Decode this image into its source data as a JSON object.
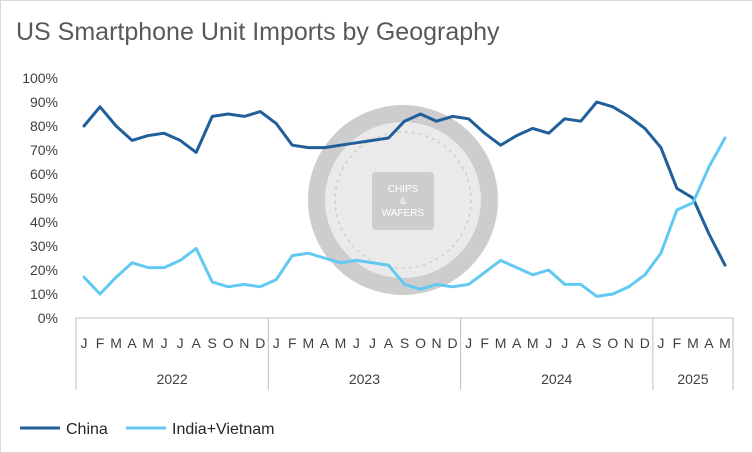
{
  "chart_data": {
    "type": "line",
    "title": "US Smartphone Unit Imports by Geography",
    "xlabel": "",
    "ylabel": "",
    "ylim": [
      0,
      100
    ],
    "y_ticks": [
      "0%",
      "10%",
      "20%",
      "30%",
      "40%",
      "50%",
      "60%",
      "70%",
      "80%",
      "90%",
      "100%"
    ],
    "x_ticks": [
      "J",
      "F",
      "M",
      "A",
      "M",
      "J",
      "J",
      "A",
      "S",
      "O",
      "N",
      "D",
      "J",
      "F",
      "M",
      "A",
      "M",
      "J",
      "J",
      "A",
      "S",
      "O",
      "N",
      "D",
      "J",
      "F",
      "M",
      "A",
      "M",
      "J",
      "J",
      "A",
      "S",
      "O",
      "N",
      "D",
      "J",
      "F",
      "M",
      "A",
      "M"
    ],
    "years": [
      {
        "label": "2022",
        "months": 12
      },
      {
        "label": "2023",
        "months": 12
      },
      {
        "label": "2024",
        "months": 12
      },
      {
        "label": "2025",
        "months": 5
      }
    ],
    "grid": false,
    "legend_position": "bottom-left",
    "series": [
      {
        "name": "China",
        "color": "#215f9a",
        "values": [
          80,
          88,
          80,
          74,
          76,
          77,
          74,
          69,
          84,
          85,
          84,
          86,
          81,
          72,
          71,
          71,
          72,
          73,
          74,
          75,
          82,
          85,
          82,
          84,
          83,
          77,
          72,
          76,
          79,
          77,
          83,
          82,
          90,
          88,
          84,
          79,
          71,
          54,
          50,
          35,
          22
        ]
      },
      {
        "name": "India+Vietnam",
        "color": "#61c9f2",
        "values": [
          17,
          10,
          17,
          23,
          21,
          21,
          24,
          29,
          15,
          13,
          14,
          13,
          16,
          26,
          27,
          25,
          23,
          24,
          23,
          22,
          14,
          12,
          14,
          13,
          14,
          19,
          24,
          21,
          18,
          20,
          14,
          14,
          9,
          10,
          13,
          18,
          27,
          45,
          48,
          63,
          75
        ]
      }
    ]
  },
  "watermark": {
    "text_top": "CHIPS",
    "text_mid": "&",
    "text_bottom": "WAFERS"
  }
}
